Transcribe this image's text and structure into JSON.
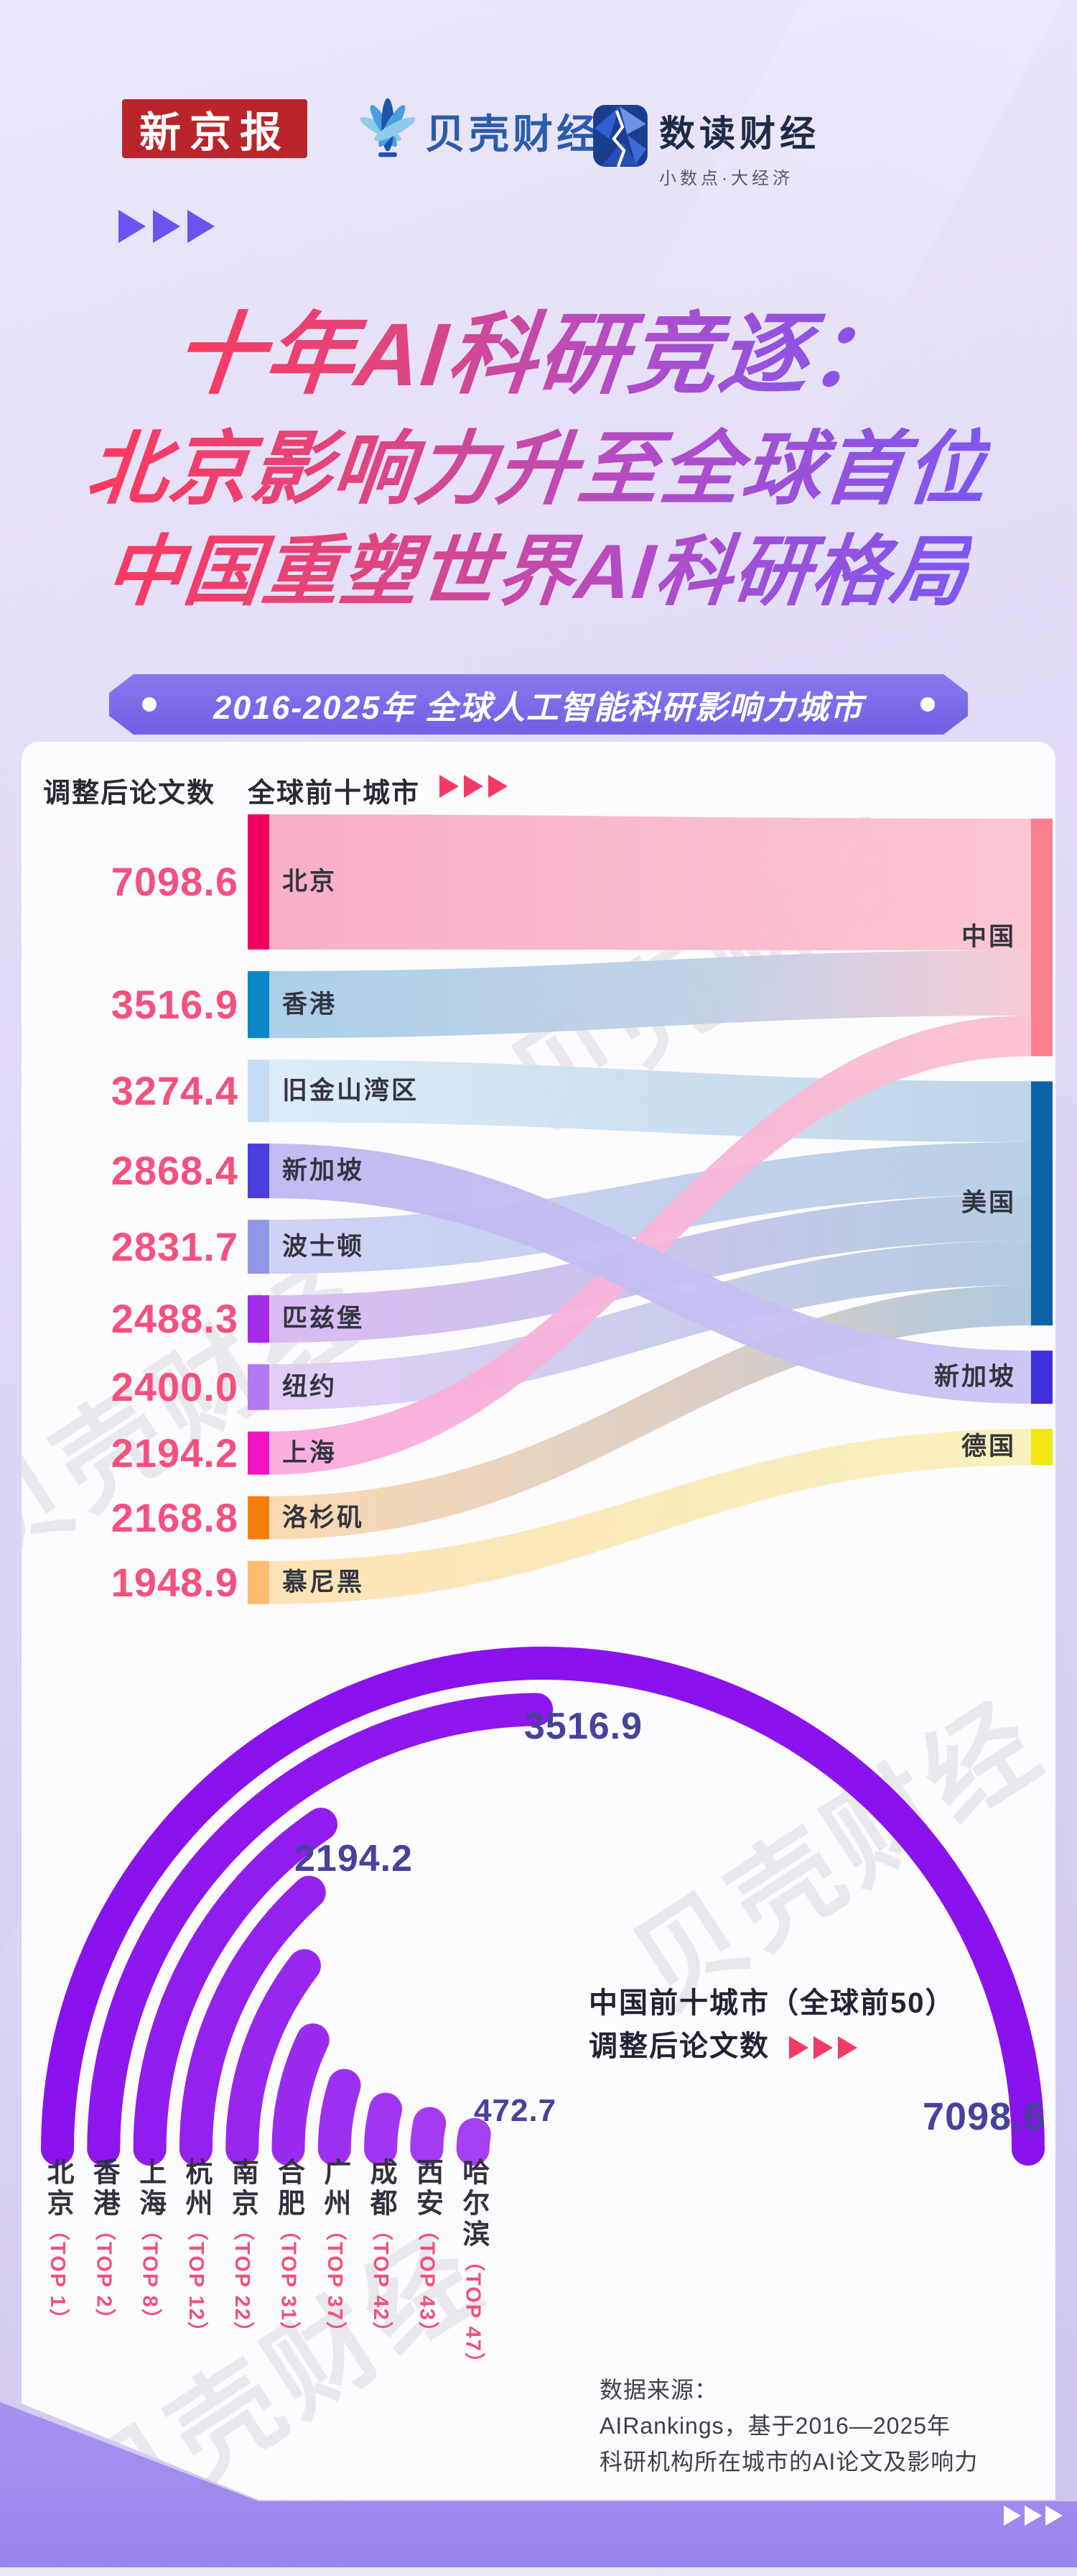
{
  "header": {
    "xjb_logo": "新京报",
    "bk_logo": "贝壳财经",
    "sd_logo": "数读财经",
    "sd_tagline": "小数点·大经济"
  },
  "title": {
    "line1": "十年AI科研竞逐：",
    "line2": "北京影响力升至全球首位",
    "line3": "中国重塑世界AI科研格局"
  },
  "banner": {
    "text": "2016-2025年 全球人工智能科研影响力城市"
  },
  "sankey_header": {
    "left": "调整后论文数",
    "right": "全球前十城市"
  },
  "watermark": "贝壳财经",
  "source": {
    "line1": "数据来源：",
    "line2": "AIRankings，基于2016—2025年",
    "line3": "科研机构所在城市的AI论文及影响力"
  },
  "chart_data": [
    {
      "type": "sankey",
      "title": "全球前十城市",
      "unit_label": "调整后论文数",
      "cities": [
        {
          "name": "北京",
          "value": 7098.6,
          "country": "中国",
          "node_color": "#F2015F",
          "flow_stops": [
            [
              0,
              "#F8ABC6"
            ],
            [
              1,
              "#FAC4CF"
            ]
          ]
        },
        {
          "name": "香港",
          "value": 3516.9,
          "country": "中国",
          "node_color": "#0C86C4",
          "flow_stops": [
            [
              0,
              "#A6CEE9"
            ],
            [
              0.62,
              "#C4D0E4"
            ],
            [
              1,
              "#F6C9D4"
            ]
          ]
        },
        {
          "name": "旧金山湾区",
          "value": 3274.4,
          "country": "美国",
          "node_color": "#C3DEF5",
          "flow_stops": [
            [
              0,
              "#DCEBF8"
            ],
            [
              1,
              "#B9D3E7"
            ]
          ]
        },
        {
          "name": "新加坡",
          "value": 2868.4,
          "country": "新加坡",
          "node_color": "#4B3FE1",
          "flow_stops": [
            [
              0,
              "#BDB8F0"
            ],
            [
              1,
              "#C9C4F3"
            ]
          ]
        },
        {
          "name": "波士顿",
          "value": 2831.7,
          "country": "美国",
          "node_color": "#9195EA",
          "flow_stops": [
            [
              0,
              "#CDD0F5"
            ],
            [
              1,
              "#B6CEE3"
            ]
          ]
        },
        {
          "name": "匹兹堡",
          "value": 2488.3,
          "country": "美国",
          "node_color": "#A32BE9",
          "flow_stops": [
            [
              0,
              "#D9B8F3"
            ],
            [
              1,
              "#B2CBE1"
            ]
          ]
        },
        {
          "name": "纽约",
          "value": 2400.0,
          "country": "美国",
          "node_color": "#B478F0",
          "flow_stops": [
            [
              0,
              "#E2CCF7"
            ],
            [
              1,
              "#AFC9DF"
            ]
          ]
        },
        {
          "name": "上海",
          "value": 2194.2,
          "country": "中国",
          "node_color": "#F214C2",
          "flow_stops": [
            [
              0,
              "#F9ABDE"
            ],
            [
              0.6,
              "#F8B7D8"
            ],
            [
              1,
              "#F9C2CC"
            ]
          ]
        },
        {
          "name": "洛杉矶",
          "value": 2168.8,
          "country": "美国",
          "node_color": "#F87E0C",
          "flow_stops": [
            [
              0,
              "#FBD9AE"
            ],
            [
              0.6,
              "#D8CBC4"
            ],
            [
              1,
              "#ABC7DD"
            ]
          ]
        },
        {
          "name": "慕尼黑",
          "value": 1948.9,
          "country": "德国",
          "node_color": "#FBBC6E",
          "flow_stops": [
            [
              0,
              "#FCE2B4"
            ],
            [
              1,
              "#F9F0BA"
            ]
          ]
        }
      ],
      "countries": [
        {
          "name": "中国",
          "color": "#F9808F"
        },
        {
          "name": "美国",
          "color": "#0D63A8"
        },
        {
          "name": "新加坡",
          "color": "#3E30DC"
        },
        {
          "name": "德国",
          "color": "#F3E814"
        }
      ]
    },
    {
      "type": "radial_bar",
      "title": "中国前十城市（全球前50）",
      "subtitle": "调整后论文数",
      "max_value": 7098.6,
      "arc_color_outer": "#8A12EC",
      "arc_color_inner": "#A73FF2",
      "cities": [
        {
          "name": "北京",
          "top_rank": "TOP 1",
          "value": 7098.6,
          "labeled": true
        },
        {
          "name": "香港",
          "top_rank": "TOP 2",
          "value": 3516.9,
          "labeled": true
        },
        {
          "name": "上海",
          "top_rank": "TOP 8",
          "value": 2194.2,
          "labeled": true
        },
        {
          "name": "杭州",
          "top_rank": "TOP 12",
          "value": 1880,
          "labeled": false,
          "estimated": true
        },
        {
          "name": "南京",
          "top_rank": "TOP 22",
          "value": 1480,
          "labeled": false,
          "estimated": true
        },
        {
          "name": "合肥",
          "top_rank": "TOP 31",
          "value": 1000,
          "labeled": false,
          "estimated": true
        },
        {
          "name": "广州",
          "top_rank": "TOP 37",
          "value": 700,
          "labeled": false,
          "estimated": true
        },
        {
          "name": "成都",
          "top_rank": "TOP 42",
          "value": 560,
          "labeled": false,
          "estimated": true
        },
        {
          "name": "西安",
          "top_rank": "TOP 43",
          "value": 500,
          "labeled": false,
          "estimated": true
        },
        {
          "name": "哈尔滨",
          "top_rank": "TOP 47",
          "value": 472.7,
          "labeled": true
        }
      ]
    }
  ]
}
